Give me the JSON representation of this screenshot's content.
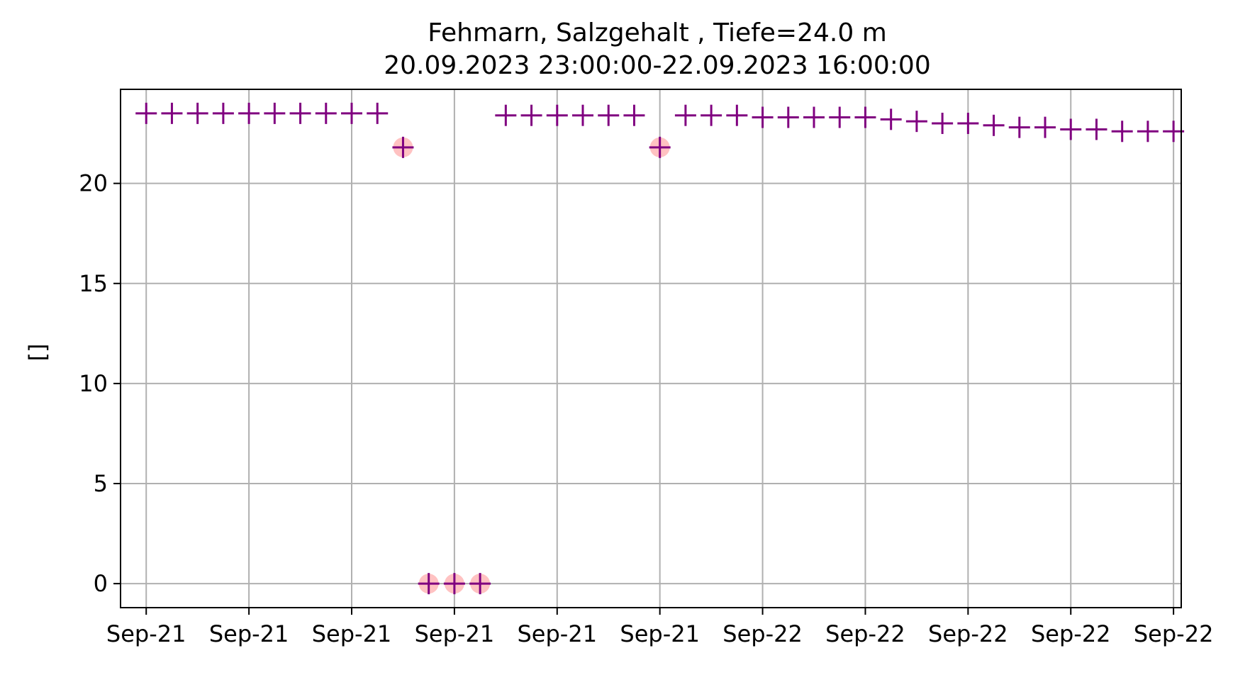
{
  "chart_data": {
    "type": "scatter",
    "title": "Fehmarn, Salzgehalt , Tiefe=24.0 m",
    "subtitle": "20.09.2023 23:00:00-22.09.2023 16:00:00",
    "xlabel": "",
    "ylabel": "[]",
    "x_tick_labels": [
      "Sep-21",
      "Sep-21",
      "Sep-21",
      "Sep-21",
      "Sep-21",
      "Sep-21",
      "Sep-22",
      "Sep-22",
      "Sep-22",
      "Sep-22",
      "Sep-22"
    ],
    "y_ticks": [
      0,
      5,
      10,
      15,
      20
    ],
    "xlim": [
      -1,
      40.3
    ],
    "ylim": [
      -1.2,
      24.7
    ],
    "grid": true,
    "series": [
      {
        "marker": "plus",
        "color": "#800080",
        "points": [
          [
            0,
            23.5
          ],
          [
            1,
            23.5
          ],
          [
            2,
            23.5
          ],
          [
            3,
            23.5
          ],
          [
            4,
            23.5
          ],
          [
            5,
            23.5
          ],
          [
            6,
            23.5
          ],
          [
            7,
            23.5
          ],
          [
            8,
            23.5
          ],
          [
            9,
            23.5
          ],
          [
            10,
            21.8
          ],
          [
            11,
            0.0
          ],
          [
            12,
            0.0
          ],
          [
            13,
            0.0
          ],
          [
            14,
            23.4
          ],
          [
            15,
            23.4
          ],
          [
            16,
            23.4
          ],
          [
            17,
            23.4
          ],
          [
            18,
            23.4
          ],
          [
            19,
            23.4
          ],
          [
            20,
            21.8
          ],
          [
            21,
            23.4
          ],
          [
            22,
            23.4
          ],
          [
            23,
            23.4
          ],
          [
            24,
            23.3
          ],
          [
            25,
            23.3
          ],
          [
            26,
            23.3
          ],
          [
            27,
            23.3
          ],
          [
            28,
            23.3
          ],
          [
            29,
            23.2
          ],
          [
            30,
            23.1
          ],
          [
            31,
            23.0
          ],
          [
            32,
            23.0
          ],
          [
            33,
            22.9
          ],
          [
            34,
            22.8
          ],
          [
            35,
            22.8
          ],
          [
            36,
            22.7
          ],
          [
            37,
            22.7
          ],
          [
            38,
            22.6
          ],
          [
            39,
            22.6
          ],
          [
            40,
            22.6
          ]
        ]
      },
      {
        "marker": "circle",
        "color": "#ff9999",
        "points": [
          [
            10,
            21.8
          ],
          [
            11,
            0.0
          ],
          [
            12,
            0.0
          ],
          [
            13,
            0.0
          ],
          [
            20,
            21.8
          ]
        ]
      }
    ]
  }
}
